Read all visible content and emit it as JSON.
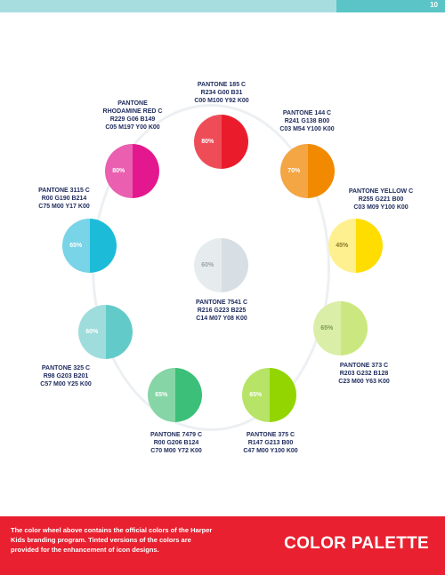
{
  "header": {
    "page_number": "10"
  },
  "swatches": [
    {
      "name": "PANTONE 185 C",
      "rgb": "R234 G00 B31",
      "cmyk": "C00 M100 Y92 K00",
      "tint": "80%",
      "color": "#ea1c2c",
      "tint_color": "#ee4d58"
    },
    {
      "name": "PANTONE 144 C",
      "rgb": "R241 G138 B00",
      "cmyk": "C03 M54 Y100 K00",
      "tint": "70%",
      "color": "#f18a00",
      "tint_color": "#f4a544"
    },
    {
      "name": "PANTONE YELLOW C",
      "rgb": "R255 G221 B00",
      "cmyk": "C03 M09 Y100 K00",
      "tint": "45%",
      "color": "#ffdd00",
      "tint_color": "#fff08f"
    },
    {
      "name": "PANTONE 373 C",
      "rgb": "R203 G232 B128",
      "cmyk": "C23 M00 Y63 K00",
      "tint": "65%",
      "color": "#cbe880",
      "tint_color": "#daeea8"
    },
    {
      "name": "PANTONE 375 C",
      "rgb": "R147 G213 B00",
      "cmyk": "C47 M00 Y100 K00",
      "tint": "65%",
      "color": "#93d500",
      "tint_color": "#b7e366"
    },
    {
      "name": "PANTONE 7479 C",
      "rgb": "R00 G206 B124",
      "cmyk": "C70 M00 Y72 K00",
      "tint": "65%",
      "color": "#3cbf78",
      "tint_color": "#86d5a6"
    },
    {
      "name": "PANTONE 325 C",
      "rgb": "R98 G203 B201",
      "cmyk": "C57 M00 Y25 K00",
      "tint": "60%",
      "color": "#62cbc9",
      "tint_color": "#9edddb"
    },
    {
      "name": "PANTONE 3115 C",
      "rgb": "R00 G190 B214",
      "cmyk": "C75 M00 Y17 K00",
      "tint": "65%",
      "color": "#1cbcd8",
      "tint_color": "#78d4e6"
    },
    {
      "name_line1": "PANTONE",
      "name_line2": "RHODAMINE RED C",
      "rgb": "R229 G06 B149",
      "cmyk": "C05 M197 Y00 K00",
      "tint": "80%",
      "color": "#e3188f",
      "tint_color": "#ea5fb0"
    },
    {
      "name": "PANTONE 7541 C",
      "rgb": "R216 G223 B225",
      "cmyk": "C14 M07 Y08 K00",
      "tint": "60%",
      "color": "#d8dfe4",
      "tint_color": "#e6ebee"
    }
  ],
  "footer": {
    "text": "The color wheel above contains the official colors of the Harper Kids branding program. Tinted versions of the colors are provided for the enhancement of icon designs.",
    "title": "COLOR PALETTE",
    "background": "#e8202f"
  }
}
